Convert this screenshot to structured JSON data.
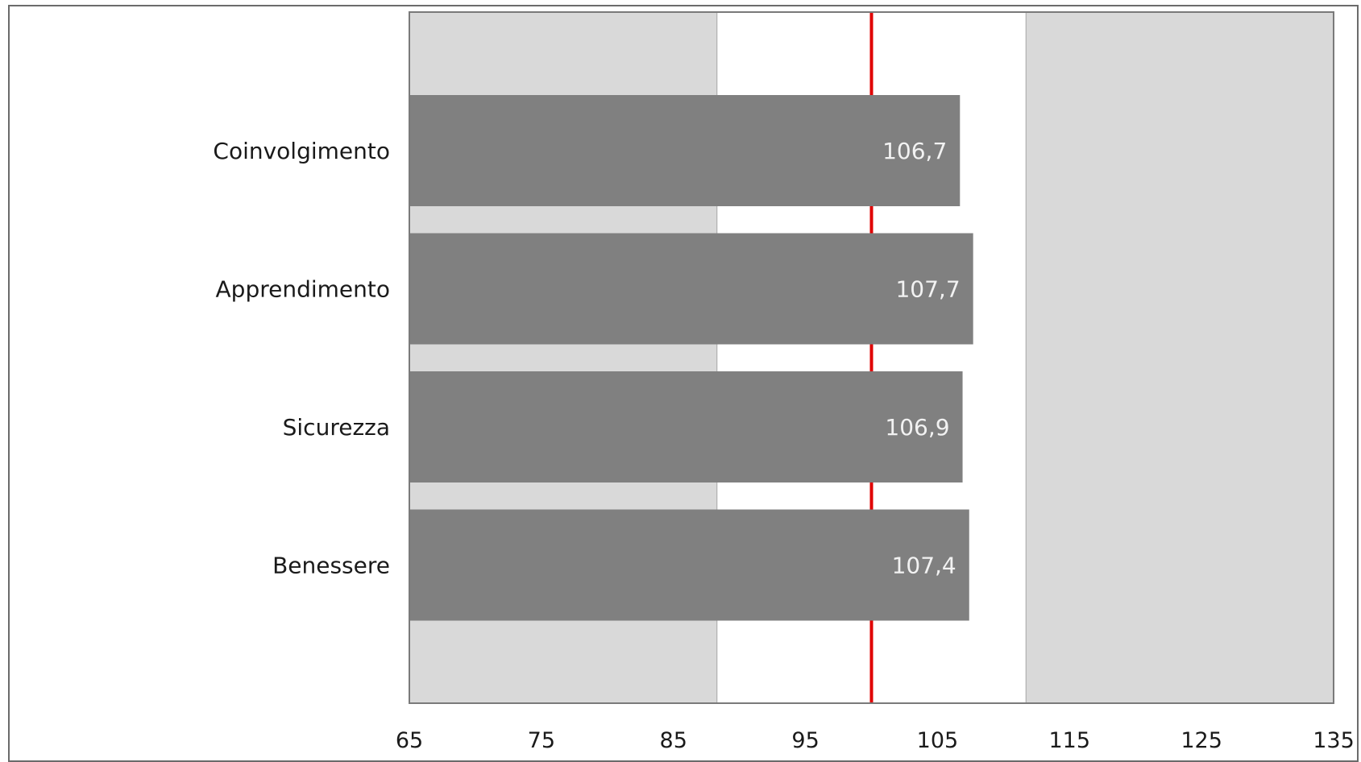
{
  "chart_data": {
    "type": "bar",
    "orientation": "horizontal",
    "categories": [
      "Coinvolgimento",
      "Apprendimento",
      "Sicurezza",
      "Benessere"
    ],
    "values": [
      106.7,
      107.7,
      106.9,
      107.4
    ],
    "value_labels": [
      "106,7",
      "107,7",
      "106,9",
      "107,4"
    ],
    "xlim": [
      65,
      135
    ],
    "x_ticks": [
      65,
      75,
      85,
      95,
      105,
      115,
      125,
      135
    ],
    "x_tick_labels": [
      "65",
      "75",
      "85",
      "95",
      "105",
      "115",
      "125",
      "135"
    ],
    "reference_line": 100,
    "background_bands": [
      {
        "from": 65,
        "to": 88.3,
        "color": "#d9d9d9"
      },
      {
        "from": 88.3,
        "to": 111.7,
        "color": "#ffffff"
      },
      {
        "from": 111.7,
        "to": 135,
        "color": "#d9d9d9"
      }
    ],
    "title": "",
    "xlabel": "",
    "ylabel": "",
    "grid": false,
    "legend": "none"
  },
  "colors": {
    "bar": "#808080",
    "band_gray": "#d9d9d9",
    "band_white": "#ffffff",
    "reference_line": "#e00000",
    "axis": "#7a7a7a",
    "value_text": "#f2f2f2",
    "label_text": "#1a1a1a"
  }
}
